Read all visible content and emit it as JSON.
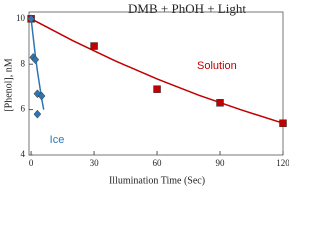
{
  "chart_data": {
    "type": "scatter",
    "title": "DMB + PhOH + Light",
    "x_label": "Illumination Time (Sec)",
    "y_label": "[Phenol], nM",
    "xlim": [
      -1,
      120
    ],
    "ylim": [
      4,
      10.3
    ],
    "xticks": [
      0,
      30,
      60,
      90,
      120
    ],
    "yticks": [
      4,
      6,
      8,
      10
    ],
    "series": [
      {
        "name": "Solution",
        "color": "#c00000",
        "marker": "square",
        "x": [
          0,
          30,
          60,
          90,
          120
        ],
        "values": [
          10,
          8.8,
          6.9,
          6.3,
          5.4
        ],
        "fit_x": [
          0,
          20,
          40,
          60,
          80,
          100,
          120
        ],
        "fit_values": [
          10,
          9.03,
          8.15,
          7.35,
          6.63,
          5.99,
          5.4
        ]
      },
      {
        "name": "Ice",
        "color": "#2e75b6",
        "marker": "diamond",
        "x": [
          0,
          1,
          2,
          3,
          5,
          3
        ],
        "values": [
          10,
          8.3,
          8.2,
          6.7,
          6.6,
          5.8
        ],
        "fit_x": [
          0,
          1,
          2,
          3,
          4,
          5,
          6
        ],
        "fit_values": [
          10,
          9.2,
          8.4,
          7.7,
          7.1,
          6.5,
          6.0
        ]
      }
    ]
  }
}
